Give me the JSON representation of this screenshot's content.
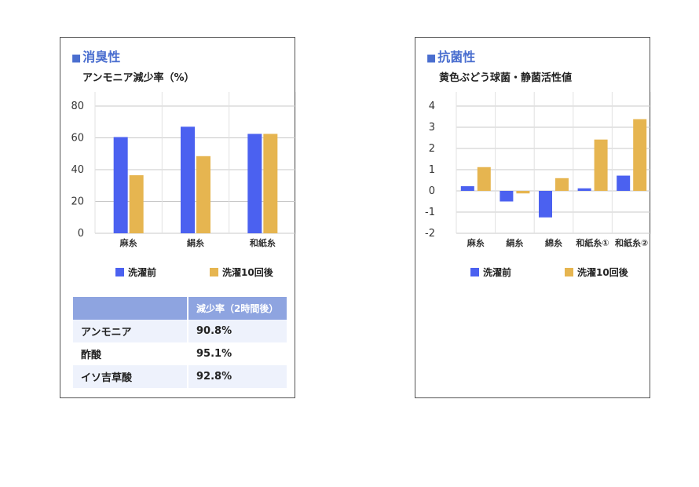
{
  "left_panel": {
    "title": "消臭性",
    "title_marker": "■",
    "legend": [
      "洗濯前",
      "洗濯10回後"
    ],
    "table": {
      "header": [
        "",
        "減少率（2時間後）"
      ],
      "rows": [
        [
          "アンモニア",
          "90.8%"
        ],
        [
          "酢酸",
          "95.1%"
        ],
        [
          "イソ吉草酸",
          "92.8%"
        ]
      ]
    }
  },
  "right_panel": {
    "title": "抗菌性",
    "title_marker": "■",
    "legend": [
      "洗濯前",
      "洗濯10回後"
    ]
  },
  "colors": {
    "series1": "#4b61f0",
    "series2": "#e6b550",
    "title": "#4a6ecf",
    "table_header": "#8ea4e0"
  },
  "chart_data": [
    {
      "type": "bar",
      "title": "アンモニア減少率（%）",
      "categories": [
        "麻糸",
        "絹糸",
        "和紙糸"
      ],
      "series": [
        {
          "name": "洗濯前",
          "values": [
            60.5,
            67,
            62.5
          ]
        },
        {
          "name": "洗濯10回後",
          "values": [
            36.5,
            48.5,
            62.5
          ]
        }
      ],
      "ylim": [
        0,
        80
      ],
      "yticks": [
        0,
        20,
        40,
        60,
        80
      ],
      "grid": true,
      "legend": "bottom"
    },
    {
      "type": "bar",
      "title": "黄色ぶどう球菌・静菌活性値",
      "categories": [
        "麻糸",
        "絹糸",
        "綿糸",
        "和紙糸①",
        "和紙糸②"
      ],
      "series": [
        {
          "name": "洗濯前",
          "values": [
            0.22,
            -0.5,
            -1.25,
            0.12,
            0.72
          ]
        },
        {
          "name": "洗濯10回後",
          "values": [
            1.12,
            -0.12,
            0.6,
            2.42,
            3.38
          ]
        }
      ],
      "ylim": [
        -2,
        4
      ],
      "yticks": [
        -2,
        -1,
        0,
        1,
        2,
        3,
        4
      ],
      "grid": true,
      "legend": "bottom"
    }
  ]
}
